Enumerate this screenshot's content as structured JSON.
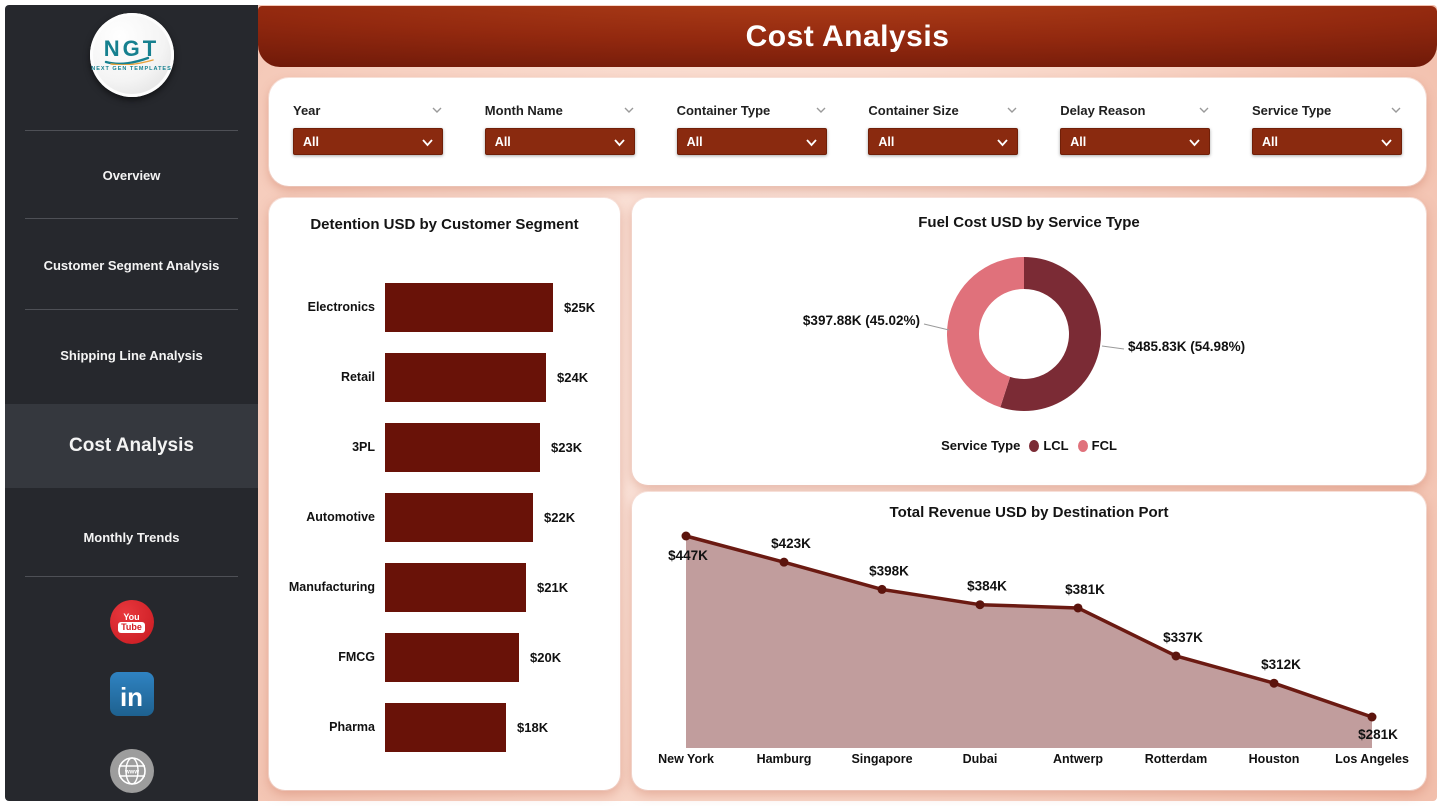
{
  "sidebar": {
    "logo": {
      "text": "NGT",
      "subtext": "NEXT GEN TEMPLATES"
    },
    "items": [
      {
        "label": "Overview",
        "active": false
      },
      {
        "label": "Customer Segment Analysis",
        "active": false
      },
      {
        "label": "Shipping Line Analysis",
        "active": false
      },
      {
        "label": "Cost Analysis",
        "active": true
      },
      {
        "label": "Monthly Trends",
        "active": false
      }
    ],
    "social_icons": [
      "youtube",
      "linkedin",
      "website"
    ]
  },
  "header": {
    "title": "Cost Analysis"
  },
  "filters": [
    {
      "label": "Year",
      "value": "All"
    },
    {
      "label": "Month Name",
      "value": "All"
    },
    {
      "label": "Container Type",
      "value": "All"
    },
    {
      "label": "Container Size",
      "value": "All"
    },
    {
      "label": "Delay Reason",
      "value": "All"
    },
    {
      "label": "Service Type",
      "value": "All"
    }
  ],
  "colors": {
    "sidebar_bg": "#26282d",
    "sidebar_active_bg": "#35383e",
    "header_red_dark": "#5e1206",
    "header_red_light": "#b04019",
    "filter_select_bg": "#8a2a0f",
    "page_pink_bg": "#f8d6c8",
    "bar_fill": "#691208",
    "donut_lcl": "#7b2b35",
    "donut_fcl": "#e0717b",
    "area_line": "#6b1a12",
    "area_fill": "#c19d9d"
  },
  "chart_data": [
    {
      "id": "detention_by_segment",
      "type": "bar",
      "orientation": "horizontal",
      "title": "Detention USD by Customer Segment",
      "categories": [
        "Electronics",
        "Retail",
        "3PL",
        "Automotive",
        "Manufacturing",
        "FMCG",
        "Pharma"
      ],
      "values": [
        25,
        24,
        23,
        22,
        21,
        20,
        18
      ],
      "labels": [
        "$25K",
        "$24K",
        "$23K",
        "$22K",
        "$21K",
        "$20K",
        "$18K"
      ],
      "unit": "K USD",
      "xlim": [
        0,
        25
      ],
      "bar_color": "#691208",
      "grid": false
    },
    {
      "id": "fuel_by_service_type",
      "type": "pie",
      "subtype": "donut",
      "title": "Fuel Cost USD by Service Type",
      "legend_title": "Service Type",
      "legend_position": "bottom",
      "slices": [
        {
          "name": "LCL",
          "value_k_usd": 485.83,
          "pct": 54.98,
          "label": "$485.83K (54.98%)",
          "color": "#7b2b35"
        },
        {
          "name": "FCL",
          "value_k_usd": 397.88,
          "pct": 45.02,
          "label": "$397.88K (45.02%)",
          "color": "#e0717b"
        }
      ]
    },
    {
      "id": "revenue_by_destination_port",
      "type": "area",
      "title": "Total Revenue USD by Destination Port",
      "categories": [
        "New York",
        "Hamburg",
        "Singapore",
        "Dubai",
        "Antwerp",
        "Rotterdam",
        "Houston",
        "Los Angeles"
      ],
      "values": [
        447,
        423,
        398,
        384,
        381,
        337,
        312,
        281
      ],
      "labels": [
        "$447K",
        "$423K",
        "$398K",
        "$384K",
        "$381K",
        "$337K",
        "$312K",
        "$281K"
      ],
      "unit": "K USD",
      "line_color": "#6b1a12",
      "marker_color": "#5c140d",
      "fill_color": "#c19d9d",
      "grid": false
    }
  ]
}
